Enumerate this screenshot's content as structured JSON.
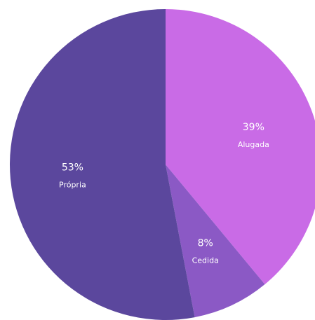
{
  "chart_data": {
    "type": "pie",
    "title": "",
    "start_angle_deg": 0,
    "direction": "clockwise",
    "slices": [
      {
        "name": "Alugada",
        "value": 39,
        "label": "39%",
        "color": "#c96be6"
      },
      {
        "name": "Cedida",
        "value": 8,
        "label": "8%",
        "color": "#8b59c5"
      },
      {
        "name": "Própria",
        "value": 53,
        "label": "53%",
        "color": "#5b479d"
      }
    ]
  }
}
